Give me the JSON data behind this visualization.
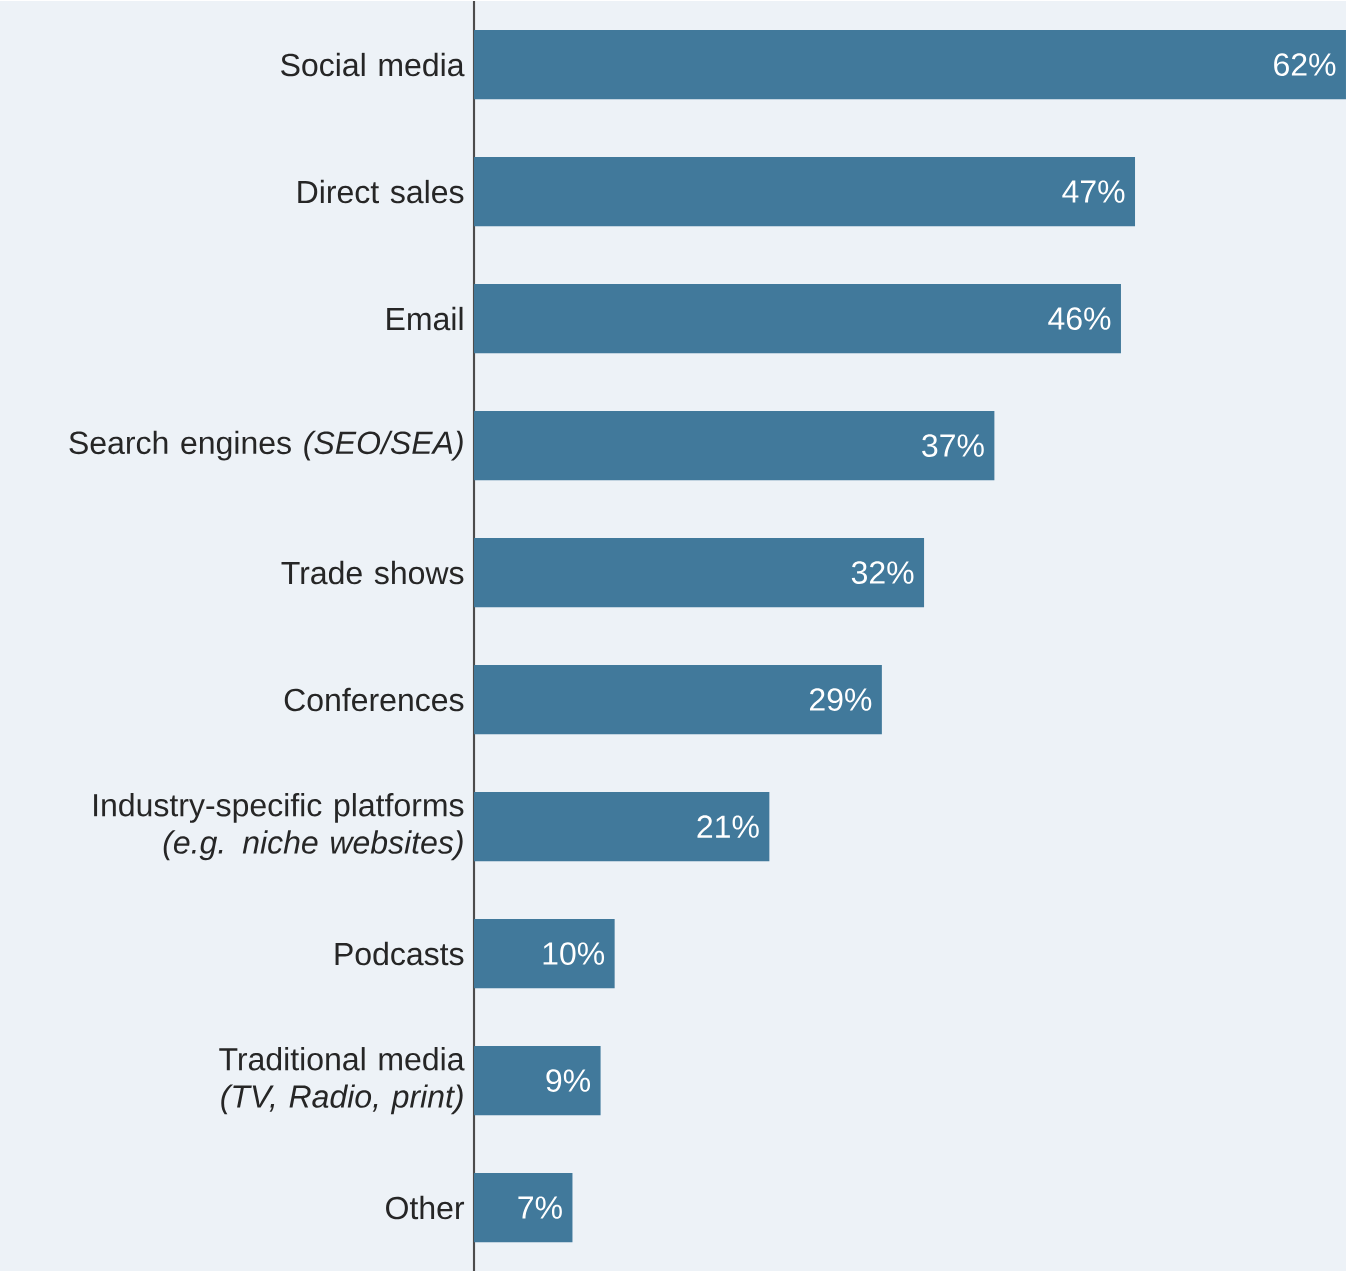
{
  "chart_data": {
    "type": "bar",
    "orientation": "horizontal",
    "categories": [
      "Social media",
      "Direct sales",
      "Email",
      "Search engines *(SEO/SEA)*",
      "Trade shows",
      "Conferences",
      "Industry-specific platforms *(e.g. niche websites)*",
      "Podcasts",
      "Traditional media *(TV, Radio, print)*",
      "Other"
    ],
    "values": [
      62,
      47,
      46,
      37,
      32,
      29,
      21,
      10,
      9,
      7
    ],
    "value_labels": [
      "62%",
      "47%",
      "46%",
      "37%",
      "32%",
      "29%",
      "21%",
      "10%",
      "9%",
      "7%"
    ],
    "color": "#41799b"
  }
}
